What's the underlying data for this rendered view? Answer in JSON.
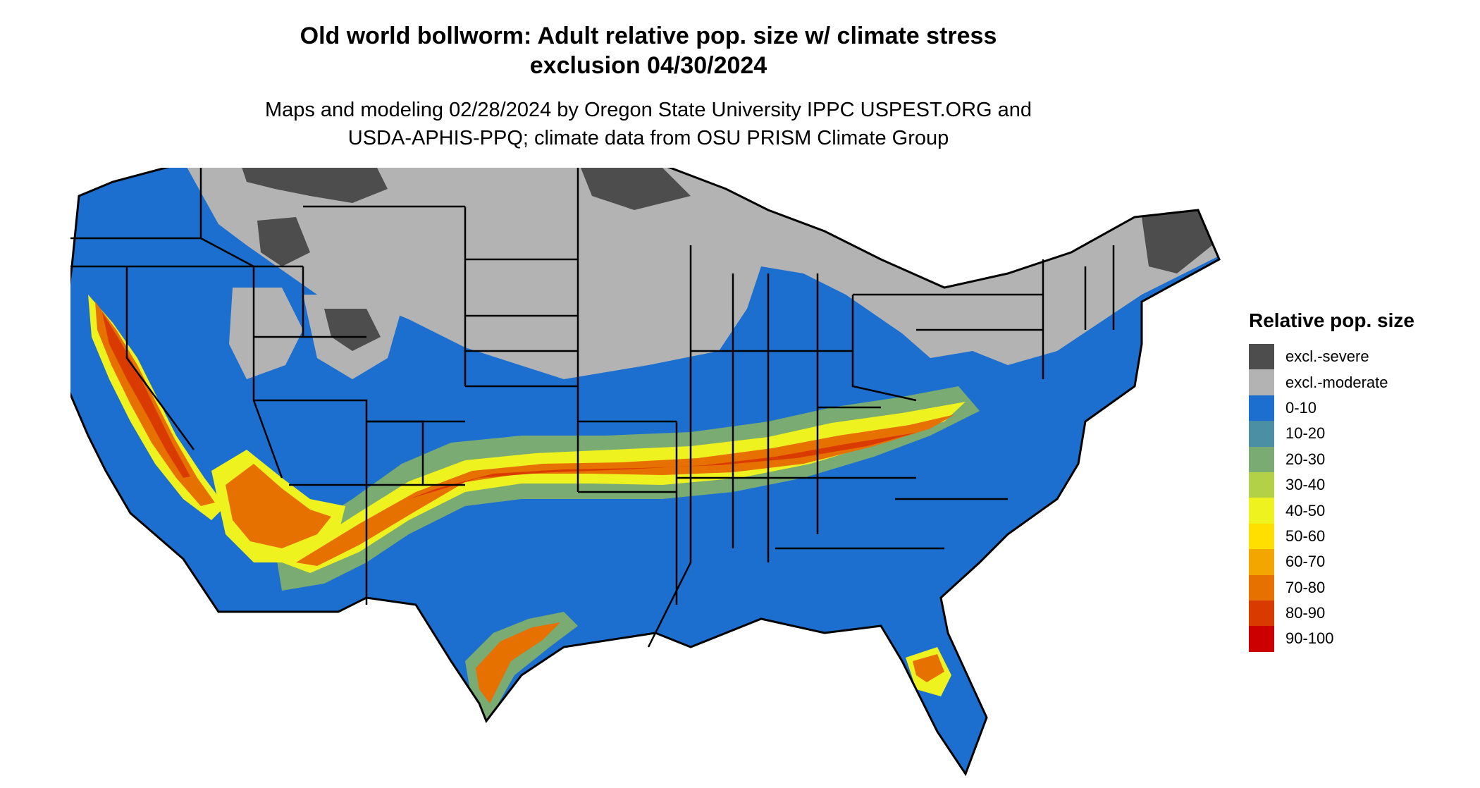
{
  "title_line1": "Old world bollworm: Adult relative pop. size w/ climate stress",
  "title_line2": "exclusion 04/30/2024",
  "subtitle_line1": "Maps and modeling 02/28/2024 by Oregon State University IPPC USPEST.ORG and",
  "subtitle_line2": "USDA-APHIS-PPQ; climate data from OSU PRISM Climate Group",
  "legend": {
    "title": "Relative pop. size",
    "items": [
      {
        "label": "excl.-severe",
        "color": "#4d4d4d"
      },
      {
        "label": "excl.-moderate",
        "color": "#b3b3b3"
      },
      {
        "label": "0-10",
        "color": "#1c6fce"
      },
      {
        "label": "10-20",
        "color": "#4a8fa3"
      },
      {
        "label": "20-30",
        "color": "#79ab72"
      },
      {
        "label": "30-40",
        "color": "#b2d147"
      },
      {
        "label": "40-50",
        "color": "#eef21e"
      },
      {
        "label": "50-60",
        "color": "#ffdf00"
      },
      {
        "label": "60-70",
        "color": "#f3a600"
      },
      {
        "label": "70-80",
        "color": "#e67000"
      },
      {
        "label": "80-90",
        "color": "#d93a00"
      },
      {
        "label": "90-100",
        "color": "#cc0000"
      }
    ]
  },
  "colors": {
    "severe": "#4d4d4d",
    "moderate": "#b3b3b3",
    "low": "#1c6fce",
    "band_outer": "#79ab72",
    "band_mid": "#eef21e",
    "band_inner": "#e67000",
    "band_core": "#d93a00",
    "border": "#000000"
  }
}
